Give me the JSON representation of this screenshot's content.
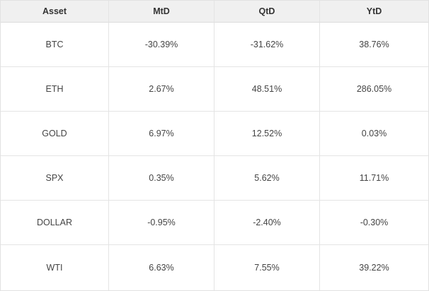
{
  "table": {
    "columns": [
      "Asset",
      "MtD",
      "QtD",
      "YtD"
    ],
    "rows": [
      {
        "asset": "BTC",
        "mtd": "-30.39%",
        "qtd": "-31.62%",
        "ytd": "38.76%"
      },
      {
        "asset": "ETH",
        "mtd": "2.67%",
        "qtd": "48.51%",
        "ytd": "286.05%"
      },
      {
        "asset": "GOLD",
        "mtd": "6.97%",
        "qtd": "12.52%",
        "ytd": "0.03%"
      },
      {
        "asset": "SPX",
        "mtd": "0.35%",
        "qtd": "5.62%",
        "ytd": "11.71%"
      },
      {
        "asset": "DOLLAR",
        "mtd": "-0.95%",
        "qtd": "-2.40%",
        "ytd": "-0.30%"
      },
      {
        "asset": "WTI",
        "mtd": "6.63%",
        "qtd": "7.55%",
        "ytd": "39.22%"
      }
    ]
  }
}
